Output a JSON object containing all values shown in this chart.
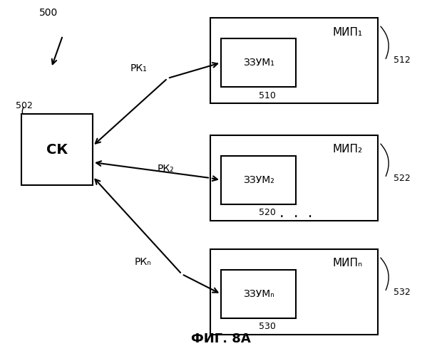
{
  "bg_color": "#ffffff",
  "title": "ФИГ. 8А",
  "title_fontsize": 14,
  "label_500": "500",
  "label_502": "502",
  "label_512": "512",
  "label_522": "522",
  "label_532": "532",
  "label_510": "510",
  "label_520": "520",
  "label_530": "530",
  "sk_label": "СК",
  "mip_labels": [
    "МИП₁",
    "МИП₂",
    "МИПₙ"
  ],
  "zzum_labels": [
    "ЗЗУМ₁",
    "ЗЗУМ₂",
    "ЗЗУМₙ"
  ],
  "rk_labels": [
    "РК₁",
    "РК₂",
    "РКₙ"
  ],
  "dots": "·  ·  ·"
}
